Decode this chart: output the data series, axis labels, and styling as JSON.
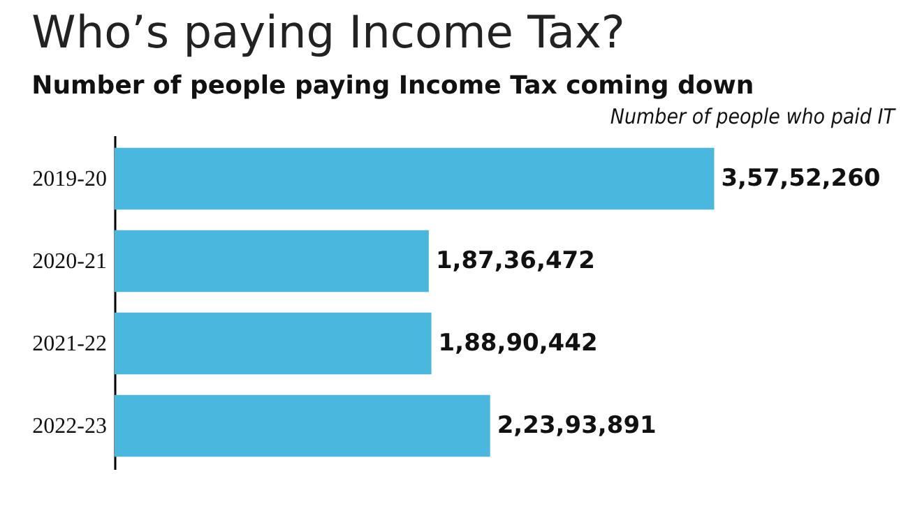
{
  "chart_data": {
    "type": "bar",
    "orientation": "horizontal",
    "title": "Who’s paying Income Tax?",
    "subtitle": "Number of people paying Income Tax coming down",
    "xlabel": "Number of people who paid IT",
    "categories": [
      "2019-20",
      "2020-21",
      "2021-22",
      "2022-23"
    ],
    "values": [
      35752260,
      18736472,
      18890442,
      22393891
    ],
    "value_labels": [
      "3,57,52,260",
      "1,87,36,472",
      "1,88,90,442",
      "2,23,93,891"
    ],
    "color": "#4ab7df",
    "grid": false
  }
}
